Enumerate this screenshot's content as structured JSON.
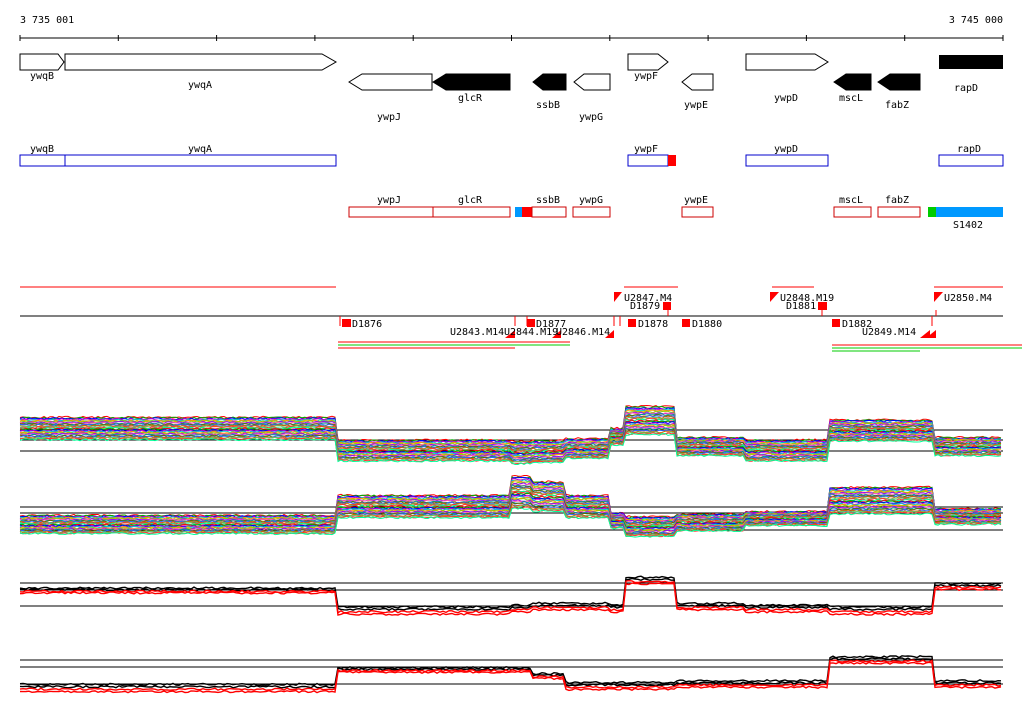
{
  "coords": {
    "start": "3 735 001",
    "end": "3 745 000"
  },
  "colors": {
    "cds_fill": "#000000",
    "cds_outline": "#000000",
    "box_blue": "#0000cc",
    "box_red": "#cc0000",
    "mark_red": "#ff0000",
    "term_green": "#00cc00",
    "term_blue": "#0099ff",
    "axis": "#000000"
  },
  "genes_top": [
    {
      "name": "ywqB",
      "strand": "+",
      "filled": false
    },
    {
      "name": "ywqA",
      "strand": "+",
      "filled": false
    },
    {
      "name": "ywpJ",
      "strand": "-",
      "filled": false
    },
    {
      "name": "glcR",
      "strand": "-",
      "filled": true
    },
    {
      "name": "ssbB",
      "strand": "-",
      "filled": true
    },
    {
      "name": "ywpG",
      "strand": "-",
      "filled": false
    },
    {
      "name": "ywpF",
      "strand": "+",
      "filled": false
    },
    {
      "name": "ywpE",
      "strand": "-",
      "filled": false
    },
    {
      "name": "ywpD",
      "strand": "+",
      "filled": false
    },
    {
      "name": "mscL",
      "strand": "-",
      "filled": true
    },
    {
      "name": "fabZ",
      "strand": "-",
      "filled": true
    },
    {
      "name": "rapD",
      "strand": "none",
      "filled": true
    }
  ],
  "boxes_plus": [
    {
      "name": "ywqB"
    },
    {
      "name": "ywqA"
    },
    {
      "name": "ywpF"
    },
    {
      "name": "ywpD"
    },
    {
      "name": "rapD"
    }
  ],
  "boxes_minus": [
    {
      "name": "ywpJ"
    },
    {
      "name": "glcR"
    },
    {
      "name": "ssbB"
    },
    {
      "name": "ywpG"
    },
    {
      "name": "ywpE"
    },
    {
      "name": "mscL"
    },
    {
      "name": "fabZ"
    }
  ],
  "terminator_label": "S1402",
  "upstream_labels": [
    "D1876",
    "U2843.M14",
    "U2844.M19",
    "D1877",
    "U2846.M14",
    "D1878",
    "U2847.M4",
    "D1879",
    "D1880",
    "U2848.M19",
    "D1881",
    "D1882",
    "U2849.M14",
    "U2850.M4"
  ]
}
